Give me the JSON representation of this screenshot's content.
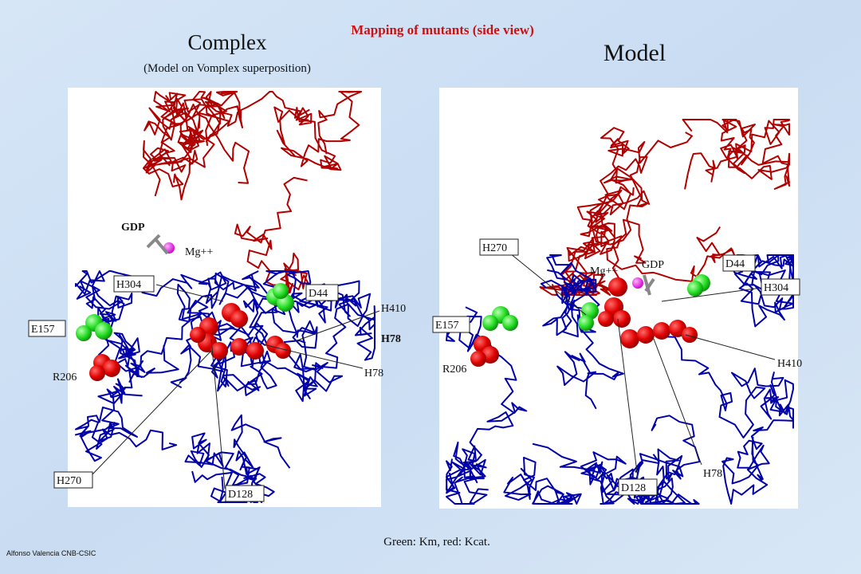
{
  "title": "Mapping of mutants (side view)",
  "left_panel": {
    "title": "Complex",
    "subtitle": "(Model on Vomplex superposition)",
    "labels": [
      "GDP",
      "Mg++",
      "H304",
      "D44",
      "H410",
      "H78",
      "E157",
      "R206",
      "H78",
      "H270",
      "D128"
    ]
  },
  "right_panel": {
    "title": "Model",
    "labels": [
      "H270",
      "Mg++",
      "GDP",
      "D44",
      "H304",
      "E157",
      "R206",
      "H410",
      "H78",
      "D128"
    ]
  },
  "legend": "Green: Km, red: Kcat.",
  "author": "Alfonso Valencia  CNB-CSIC"
}
